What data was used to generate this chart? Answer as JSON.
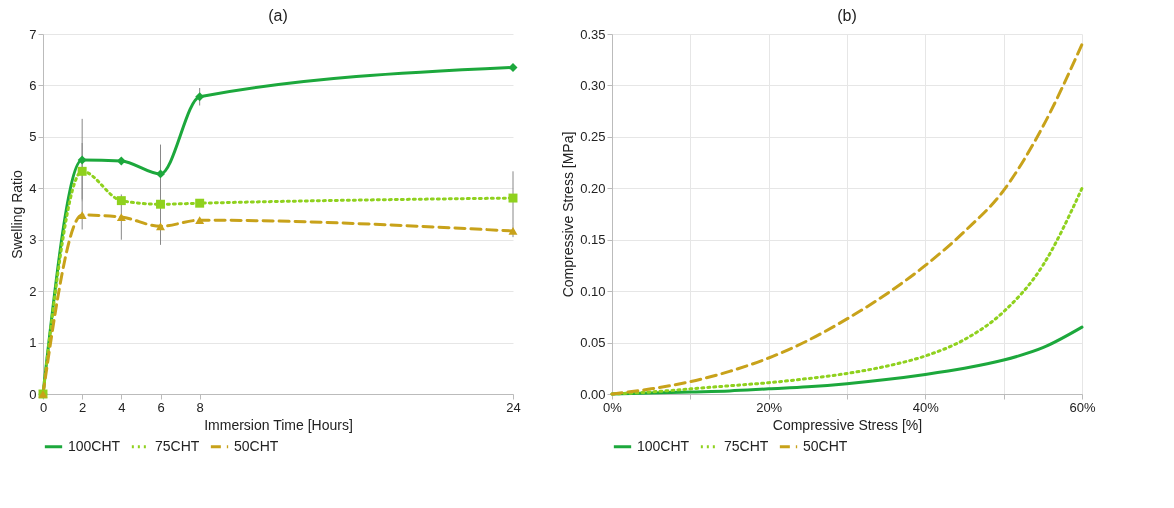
{
  "chart_data": [
    {
      "type": "line",
      "title": "(a)",
      "xlabel": "Immersion Time [Hours]",
      "ylabel": "Swelling Ratio",
      "x": [
        0,
        2,
        4,
        6,
        8,
        24
      ],
      "xlim": [
        0,
        24
      ],
      "xticks": [
        0,
        2,
        4,
        6,
        8,
        24
      ],
      "ylim": [
        0,
        7
      ],
      "yticks": [
        0,
        1,
        2,
        3,
        4,
        5,
        6,
        7
      ],
      "grid": "y",
      "legend": "bottom",
      "series": [
        {
          "name": "100CHT",
          "color": "#1ca83c",
          "marker": "diamond",
          "line_style": "solid",
          "values": [
            0,
            4.55,
            4.53,
            4.28,
            5.78,
            6.35
          ],
          "errors": [
            null,
            0.8,
            null,
            0.57,
            0.17,
            null
          ]
        },
        {
          "name": "75CHT",
          "color": "#8fd11e",
          "marker": "square",
          "line_style": "dotted",
          "values": [
            0,
            4.33,
            3.76,
            3.69,
            3.71,
            3.81
          ],
          "errors": [
            null,
            0.55,
            null,
            null,
            null,
            0.52
          ]
        },
        {
          "name": "50CHT",
          "color": "#c8a21a",
          "marker": "triangle",
          "line_style": "dashed",
          "values": [
            0,
            3.48,
            3.44,
            3.26,
            3.38,
            3.17
          ],
          "errors": [
            null,
            0.28,
            0.44,
            0.36,
            null,
            0.12
          ]
        }
      ]
    },
    {
      "type": "line",
      "title": "(b)",
      "xlabel": "Compressive Stress [%]",
      "ylabel": "Compressive Stress [MPa]",
      "x": [
        0,
        5,
        10,
        15,
        20,
        25,
        30,
        35,
        40,
        45,
        50,
        55,
        60
      ],
      "xlim": [
        0,
        60
      ],
      "xticks": [
        {
          "value": 0,
          "label": "0%"
        },
        {
          "value": 10,
          "label": null
        },
        {
          "value": 20,
          "label": "20%"
        },
        {
          "value": 30,
          "label": null
        },
        {
          "value": 40,
          "label": "40%"
        },
        {
          "value": 50,
          "label": null
        },
        {
          "value": 60,
          "label": "60%"
        }
      ],
      "ylim": [
        0,
        0.35
      ],
      "yticks": [
        {
          "value": 0,
          "label": "0.00"
        },
        {
          "value": 0.05,
          "label": "0.05"
        },
        {
          "value": 0.1,
          "label": "0.10"
        },
        {
          "value": 0.15,
          "label": "0.15"
        },
        {
          "value": 0.2,
          "label": "0.20"
        },
        {
          "value": 0.25,
          "label": "0.25"
        },
        {
          "value": 0.3,
          "label": "0.30"
        },
        {
          "value": 0.35,
          "label": "0.35"
        }
      ],
      "grid": true,
      "legend": "bottom",
      "series": [
        {
          "name": "100CHT",
          "color": "#1ca83c",
          "line_style": "solid",
          "values": [
            0,
            0.001,
            0.002,
            0.003,
            0.005,
            0.007,
            0.01,
            0.014,
            0.019,
            0.025,
            0.033,
            0.045,
            0.065
          ]
        },
        {
          "name": "75CHT",
          "color": "#8fd11e",
          "line_style": "dotted",
          "values": [
            0,
            0.002,
            0.005,
            0.008,
            0.011,
            0.015,
            0.02,
            0.027,
            0.037,
            0.053,
            0.08,
            0.125,
            0.2
          ]
        },
        {
          "name": "50CHT",
          "color": "#c8a21a",
          "line_style": "dashed",
          "values": [
            0,
            0.005,
            0.012,
            0.022,
            0.035,
            0.052,
            0.073,
            0.097,
            0.125,
            0.158,
            0.198,
            0.26,
            0.34
          ]
        }
      ]
    }
  ]
}
